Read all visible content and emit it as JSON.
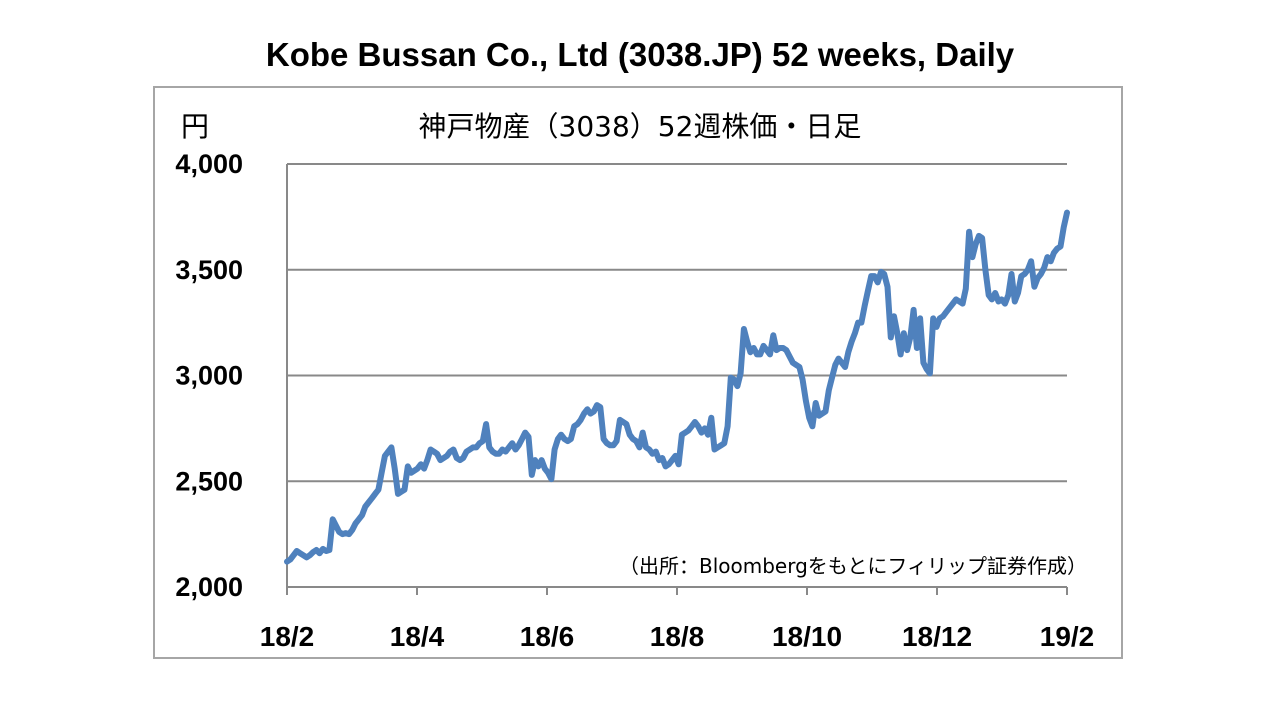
{
  "title": "Kobe Bussan Co., Ltd (3038.JP) 52 weeks, Daily",
  "chart_data": {
    "type": "line",
    "title": "神戸物産（3038）52週株価・日足",
    "unit_label": "円",
    "source_note": "（出所：Bloombergをもとにフィリップ証券作成）",
    "ylim": [
      2000,
      4000
    ],
    "y_ticks": [
      {
        "label": "4,000",
        "value": 4000
      },
      {
        "label": "3,500",
        "value": 3500
      },
      {
        "label": "3,000",
        "value": 3000
      },
      {
        "label": "2,500",
        "value": 2500
      },
      {
        "label": "2,000",
        "value": 2000
      }
    ],
    "x_ticks": [
      "18/2",
      "18/4",
      "18/6",
      "18/8",
      "18/10",
      "18/12",
      "19/2"
    ],
    "grid": true,
    "legend": "none",
    "colors": {
      "line": "#4f81bd",
      "grid": "#898989",
      "axis": "#898989"
    },
    "series": [
      {
        "values": [
          2120,
          2130,
          2150,
          2170,
          2160,
          2150,
          2140,
          2150,
          2165,
          2175,
          2160,
          2180,
          2170,
          2175,
          2320,
          2290,
          2260,
          2250,
          2255,
          2250,
          2270,
          2300,
          2320,
          2340,
          2380,
          2400,
          2420,
          2440,
          2460,
          2540,
          2620,
          2640,
          2660,
          2560,
          2440,
          2450,
          2460,
          2570,
          2540,
          2550,
          2560,
          2580,
          2560,
          2600,
          2650,
          2640,
          2630,
          2600,
          2610,
          2620,
          2640,
          2650,
          2610,
          2600,
          2610,
          2640,
          2650,
          2660,
          2660,
          2680,
          2690,
          2770,
          2660,
          2640,
          2630,
          2630,
          2650,
          2640,
          2660,
          2680,
          2650,
          2670,
          2700,
          2730,
          2710,
          2530,
          2600,
          2570,
          2600,
          2560,
          2540,
          2510,
          2650,
          2700,
          2720,
          2700,
          2690,
          2700,
          2760,
          2770,
          2790,
          2820,
          2840,
          2820,
          2830,
          2860,
          2850,
          2700,
          2680,
          2670,
          2670,
          2690,
          2790,
          2780,
          2770,
          2720,
          2700,
          2690,
          2660,
          2730,
          2660,
          2650,
          2630,
          2640,
          2600,
          2610,
          2570,
          2580,
          2600,
          2620,
          2580,
          2720,
          2730,
          2740,
          2760,
          2780,
          2760,
          2730,
          2750,
          2720,
          2800,
          2650,
          2660,
          2670,
          2680,
          2760,
          2990,
          2980,
          2950,
          3010,
          3220,
          3160,
          3110,
          3130,
          3100,
          3100,
          3140,
          3120,
          3100,
          3190,
          3120,
          3130,
          3130,
          3120,
          3090,
          3060,
          3050,
          3040,
          2980,
          2880,
          2800,
          2760,
          2870,
          2810,
          2820,
          2830,
          2930,
          2990,
          3050,
          3080,
          3060,
          3040,
          3110,
          3160,
          3200,
          3250,
          3250,
          3330,
          3400,
          3470,
          3470,
          3440,
          3490,
          3480,
          3420,
          3180,
          3280,
          3200,
          3100,
          3200,
          3120,
          3180,
          3310,
          3130,
          3270,
          3060,
          3030,
          3010,
          3270,
          3230,
          3270,
          3280,
          3300,
          3320,
          3340,
          3360,
          3350,
          3340,
          3410,
          3680,
          3560,
          3620,
          3660,
          3650,
          3500,
          3380,
          3360,
          3390,
          3350,
          3360,
          3340,
          3380,
          3480,
          3350,
          3390,
          3470,
          3480,
          3500,
          3540,
          3420,
          3460,
          3480,
          3510,
          3560,
          3540,
          3580,
          3600,
          3610,
          3700,
          3770
        ]
      }
    ]
  }
}
